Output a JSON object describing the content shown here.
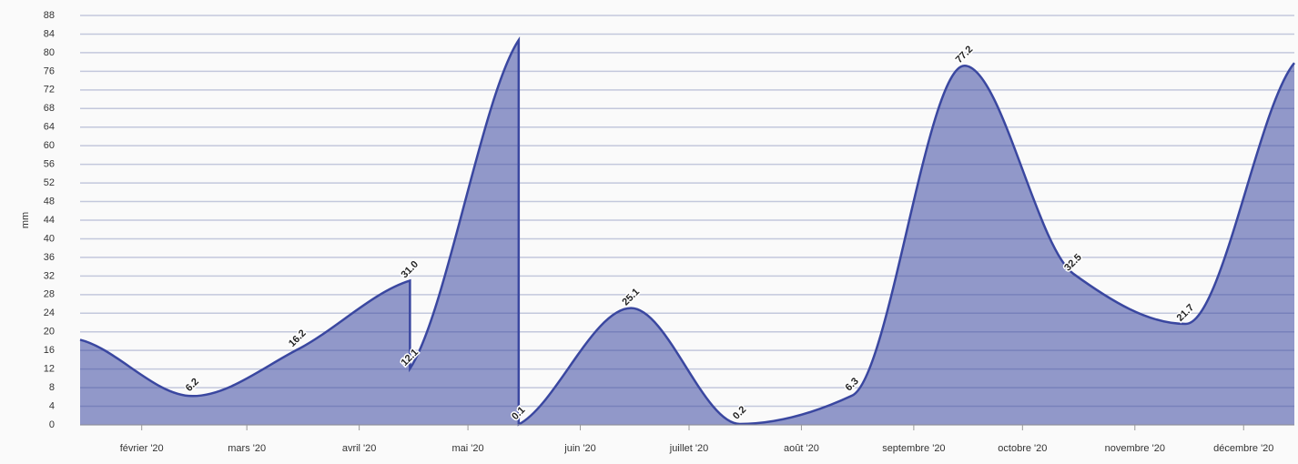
{
  "chart_data": {
    "type": "area",
    "y_label": "mm",
    "x": [
      "2020-01",
      "2020-02",
      "2020-03",
      "2020-04",
      "2020-04",
      "2020-05",
      "2020-05",
      "2020-06",
      "2020-07",
      "2020-08",
      "2020-09",
      "2020-10",
      "2020-11",
      "2020-12"
    ],
    "values": [
      18.3,
      6.2,
      16.2,
      31.0,
      12.1,
      82.7,
      0.1,
      25.1,
      0.2,
      6.3,
      77.2,
      32.5,
      21.7,
      77.8
    ],
    "value_labels": [
      null,
      "6.2",
      "16.2",
      "31.0",
      "12.1",
      null,
      "0.1",
      "25.1",
      "0.2",
      "6.3",
      "77.2",
      "32.5",
      "21.7",
      null
    ],
    "color": "#3a47a0",
    "ylim": [
      0,
      88
    ],
    "yticks": [
      0,
      4,
      8,
      12,
      16,
      20,
      24,
      28,
      32,
      36,
      40,
      44,
      48,
      52,
      56,
      60,
      64,
      68,
      72,
      76,
      80,
      84,
      88
    ],
    "xticks": [
      {
        "value": "2020-02",
        "label": "février '20"
      },
      {
        "value": "2020-03",
        "label": "mars '20"
      },
      {
        "value": "2020-04",
        "label": "avril '20"
      },
      {
        "value": "2020-05",
        "label": "mai '20"
      },
      {
        "value": "2020-06",
        "label": "juin '20"
      },
      {
        "value": "2020-07",
        "label": "juillet '20"
      },
      {
        "value": "2020-08",
        "label": "août '20"
      },
      {
        "value": "2020-09",
        "label": "septembre '20"
      },
      {
        "value": "2020-10",
        "label": "octobre '20"
      },
      {
        "value": "2020-11",
        "label": "novembre '20"
      },
      {
        "value": "2020-12",
        "label": "décembre '20"
      }
    ],
    "grid": true
  }
}
